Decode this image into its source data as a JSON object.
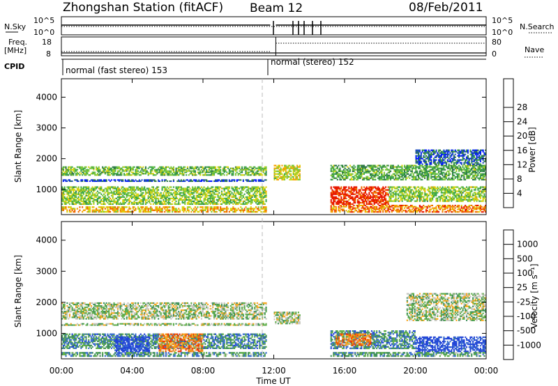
{
  "header": {
    "station": "Zhongshan Station (fitACF)",
    "beam": "Beam 12",
    "date": "08/Feb/2011"
  },
  "status_panel": {
    "left_labels": {
      "nsky": "N.Sky",
      "freq_line1": "Freq.",
      "freq_line2": "[MHz]",
      "cpid": "CPID"
    },
    "right_labels": {
      "nsearch": "N.Search",
      "nave": "Nave"
    },
    "nsky_ticks": [
      "10^5",
      "10^0"
    ],
    "nsearch_ticks": [
      "10^5",
      "10^0"
    ],
    "freq_ticks": [
      "18",
      "8"
    ],
    "nave_ticks": [
      "80",
      "0"
    ],
    "cpid_modes": [
      {
        "label": "normal (fast stereo) 153",
        "start_hour": 0.0,
        "end_hour": 11.8
      },
      {
        "label": "normal (stereo) 152",
        "start_hour": 11.8,
        "end_hour": 24.0
      }
    ]
  },
  "chart_data": [
    {
      "type": "heatmap",
      "panel": "power",
      "xlabel": "Time UT",
      "ylabel": "Slant Range [km]",
      "x_ticks": [
        "00:00",
        "04:00",
        "08:00",
        "12:00",
        "16:00",
        "20:00",
        "00:00"
      ],
      "x_tick_hours": [
        0,
        4,
        8,
        12,
        16,
        20,
        24
      ],
      "xlim": [
        0,
        24
      ],
      "y_ticks": [
        1000,
        2000,
        3000,
        4000
      ],
      "ylim": [
        180,
        4600
      ],
      "colorbar": {
        "label": "Power [dB]",
        "ticks": [
          4,
          8,
          12,
          16,
          20,
          24,
          28
        ],
        "colors": [
          "#0018ff",
          "#1e4fbf",
          "#2f7a46",
          "#3fa84a",
          "#7ec83a",
          "#d8d410",
          "#f5a400",
          "#f06a00",
          "#e81800"
        ]
      },
      "bands": [
        {
          "t0": 0.0,
          "t1": 11.6,
          "r0": 1450,
          "r1": 1750,
          "level": 0.45
        },
        {
          "t0": 0.0,
          "t1": 11.6,
          "r0": 1250,
          "r1": 1330,
          "level": 0.15
        },
        {
          "t0": 0.0,
          "t1": 11.6,
          "r0": 500,
          "r1": 1100,
          "level": 0.5
        },
        {
          "t0": 0.0,
          "t1": 11.6,
          "r0": 250,
          "r1": 450,
          "level": 0.7
        },
        {
          "t0": 12.0,
          "t1": 13.5,
          "r0": 1300,
          "r1": 1800,
          "level": 0.6
        },
        {
          "t0": 15.2,
          "t1": 18.5,
          "r0": 500,
          "r1": 1100,
          "level": 0.95
        },
        {
          "t0": 15.2,
          "t1": 24.0,
          "r0": 1300,
          "r1": 1800,
          "level": 0.4
        },
        {
          "t0": 15.2,
          "t1": 24.0,
          "r0": 250,
          "r1": 500,
          "level": 0.8
        },
        {
          "t0": 18.5,
          "t1": 24.0,
          "r0": 600,
          "r1": 1100,
          "level": 0.5
        },
        {
          "t0": 20.0,
          "t1": 24.0,
          "r0": 1800,
          "r1": 2300,
          "level": 0.2
        }
      ]
    },
    {
      "type": "heatmap",
      "panel": "velocity",
      "xlabel": "Time UT",
      "ylabel": "Slant Range [km]",
      "x_ticks": [
        "00:00",
        "04:00",
        "08:00",
        "12:00",
        "16:00",
        "20:00",
        "00:00"
      ],
      "x_tick_hours": [
        0,
        4,
        8,
        12,
        16,
        20,
        24
      ],
      "xlim": [
        0,
        24
      ],
      "y_ticks": [
        1000,
        2000,
        3000,
        4000
      ],
      "ylim": [
        180,
        4600
      ],
      "colorbar": {
        "label": "Velocity [m s⁻¹]",
        "ticks": [
          1000,
          500,
          100,
          25,
          -25,
          -100,
          -500,
          -1000
        ],
        "colors": [
          "#2244d8",
          "#3a6fcf",
          "#3e8f5a",
          "#5fae4a",
          "#c8c8c0",
          "#f7a820",
          "#f07810",
          "#ee3a08",
          "#e80000"
        ]
      },
      "bands": [
        {
          "t0": 0.0,
          "t1": 11.6,
          "r0": 1450,
          "r1": 2000,
          "level": 0.45
        },
        {
          "t0": 0.0,
          "t1": 11.6,
          "r0": 1250,
          "r1": 1330,
          "level": 0.45
        },
        {
          "t0": 0.0,
          "t1": 11.6,
          "r0": 500,
          "r1": 1000,
          "level": 0.25
        },
        {
          "t0": 3.0,
          "t1": 5.0,
          "r0": 300,
          "r1": 900,
          "level": 0.05
        },
        {
          "t0": 5.5,
          "t1": 8.0,
          "r0": 400,
          "r1": 1000,
          "level": 0.7
        },
        {
          "t0": 0.0,
          "t1": 11.6,
          "r0": 250,
          "r1": 400,
          "level": 0.3
        },
        {
          "t0": 12.0,
          "t1": 13.5,
          "r0": 1300,
          "r1": 1700,
          "level": 0.45
        },
        {
          "t0": 15.2,
          "t1": 20.0,
          "r0": 500,
          "r1": 1100,
          "level": 0.25
        },
        {
          "t0": 15.5,
          "t1": 17.5,
          "r0": 600,
          "r1": 1000,
          "level": 0.7
        },
        {
          "t0": 20.0,
          "t1": 24.0,
          "r0": 400,
          "r1": 900,
          "level": 0.05
        },
        {
          "t0": 19.5,
          "t1": 24.0,
          "r0": 1400,
          "r1": 2300,
          "level": 0.45
        },
        {
          "t0": 15.2,
          "t1": 24.0,
          "r0": 250,
          "r1": 400,
          "level": 0.3
        }
      ]
    }
  ]
}
